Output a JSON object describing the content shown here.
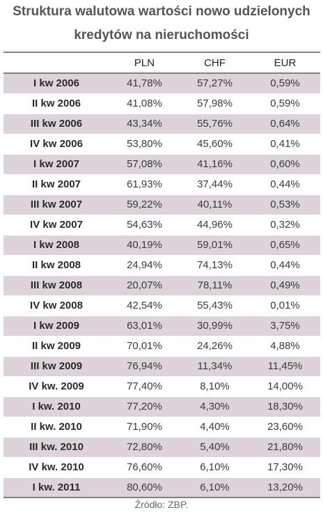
{
  "title": {
    "line1": "Struktura walutowa wartości nowo udzielonych",
    "line2": "kredytów na nieruchomości"
  },
  "table": {
    "headers": [
      "",
      "PLN",
      "CHF",
      "EUR"
    ],
    "rows": [
      [
        "I kw 2006",
        "41,78%",
        "57,27%",
        "0,59%"
      ],
      [
        "II kw 2006",
        "41,08%",
        "57,98%",
        "0,59%"
      ],
      [
        "III kw 2006",
        "43,34%",
        "55,76%",
        "0,64%"
      ],
      [
        "IV kw 2006",
        "53,80%",
        "45,60%",
        "0,41%"
      ],
      [
        "I kw 2007",
        "57,08%",
        "41,16%",
        "0,60%"
      ],
      [
        "II kw 2007",
        "61,93%",
        "37,44%",
        "0,44%"
      ],
      [
        "III kw 2007",
        "59,22%",
        "40,11%",
        "0,53%"
      ],
      [
        "IV kw 2007",
        "54,63%",
        "44,96%",
        "0,32%"
      ],
      [
        "I kw 2008",
        "40,19%",
        "59,01%",
        "0,65%"
      ],
      [
        "II kw 2008",
        "24,94%",
        "74,13%",
        "0,44%"
      ],
      [
        "III kw 2008",
        "20,07%",
        "78,11%",
        "0,49%"
      ],
      [
        "IV kw 2008",
        "42,54%",
        "55,43%",
        "0,01%"
      ],
      [
        "I kw 2009",
        "63,01%",
        "30,99%",
        "3,75%"
      ],
      [
        "II kw 2009",
        "70,01%",
        "24,26%",
        "4,88%"
      ],
      [
        "III kw 2009",
        "76,94%",
        "11,34%",
        "11,45%"
      ],
      [
        "IV kw. 2009",
        "77,40%",
        "8,10%",
        "14,00%"
      ],
      [
        "I kw. 2010",
        "77,20%",
        "4,30%",
        "18,30%"
      ],
      [
        "II kw. 2010",
        "71,90%",
        "4,40%",
        "23,60%"
      ],
      [
        "III kw. 2010",
        "72,80%",
        "5,40%",
        "21,80%"
      ],
      [
        "IV kw. 2010",
        "76,60%",
        "6,10%",
        "17,30%"
      ],
      [
        "I kw. 2011",
        "80,60%",
        "6,10%",
        "13,20%"
      ]
    ]
  },
  "source": "Źródło: ZBP.",
  "colors": {
    "shade": "#ddd3db",
    "rule": "#8a7a86"
  }
}
